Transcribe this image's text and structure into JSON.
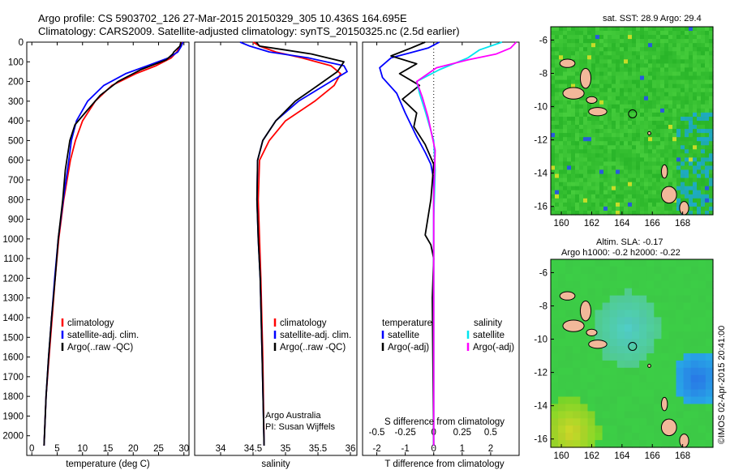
{
  "header": {
    "line1": "Argo profile: CS 5903702_126 27-Mar-2015 20150329_305 10.436S 164.695E",
    "line2": "Climatology: CARS2009. Satellite-adjusted climatology: synTS_20150325.nc (2.5d earlier)"
  },
  "colors": {
    "climatology": "#ff0000",
    "satellite": "#0000ff",
    "argo": "#000000",
    "sal_satellite": "#00e5ee",
    "sal_argo": "#ff00ff",
    "land": "#f2b89a"
  },
  "chart_data": [
    {
      "type": "line",
      "panel": "temperature",
      "xlabel": "temperature (deg C)",
      "ylabel": "",
      "xlim": [
        -1,
        31
      ],
      "ylim": [
        2100,
        0
      ],
      "xticks": [
        0,
        5,
        10,
        15,
        20,
        25,
        30
      ],
      "yticks": [
        0,
        100,
        200,
        300,
        400,
        500,
        600,
        700,
        800,
        900,
        1000,
        1100,
        1200,
        1300,
        1400,
        1500,
        1600,
        1700,
        1800,
        1900,
        2000
      ],
      "legend": [
        "climatology",
        "satellite-adj. clim.",
        "Argo(..raw -QC)"
      ],
      "series": [
        {
          "name": "climatology",
          "color": "#ff0000",
          "x": [
            29.6,
            29.3,
            28.6,
            27.5,
            24.5,
            20.5,
            15.8,
            12.5,
            10.0,
            8.6,
            7.6,
            6.3,
            5.3,
            4.6,
            4.0,
            3.4,
            2.8,
            2.4
          ],
          "y": [
            0,
            20,
            50,
            80,
            120,
            160,
            220,
            300,
            400,
            500,
            600,
            800,
            1000,
            1200,
            1400,
            1600,
            1800,
            2050
          ]
        },
        {
          "name": "satellite-adj. clim.",
          "color": "#0000ff",
          "x": [
            29.8,
            29.5,
            28.8,
            27.0,
            22.8,
            18.5,
            14.2,
            11.0,
            8.8,
            7.8,
            7.3,
            6.2,
            5.2,
            4.5,
            3.9,
            3.3,
            2.8,
            2.4
          ],
          "y": [
            0,
            20,
            50,
            80,
            120,
            160,
            220,
            300,
            400,
            500,
            600,
            800,
            1000,
            1200,
            1400,
            1600,
            1800,
            2050
          ]
        },
        {
          "name": "Argo(..raw -QC)",
          "color": "#000000",
          "x": [
            29.4,
            29.2,
            28.0,
            27.8,
            26.5,
            21.5,
            17.0,
            13.5,
            10.8,
            8.5,
            7.5,
            6.6,
            6.1,
            5.2,
            4.6,
            3.9,
            3.3,
            2.8,
            2.4
          ],
          "y": [
            0,
            20,
            50,
            60,
            90,
            140,
            200,
            270,
            350,
            420,
            500,
            650,
            800,
            1000,
            1200,
            1400,
            1600,
            1800,
            2050
          ]
        }
      ]
    },
    {
      "type": "line",
      "panel": "salinity",
      "xlabel": "salinity",
      "xlim": [
        33.6,
        36.1
      ],
      "ylim": [
        2100,
        0
      ],
      "xticks": [
        34,
        34.5,
        35,
        35.5,
        36
      ],
      "legend": [
        "climatology",
        "satellite-adj. clim.",
        "Argo(..raw -QC)"
      ],
      "annotation": [
        "Argo Australia",
        "PI: Susan Wijffels"
      ],
      "series": [
        {
          "name": "climatology",
          "color": "#ff0000",
          "x": [
            34.5,
            34.6,
            34.85,
            35.25,
            35.7,
            35.85,
            35.75,
            35.45,
            35.0,
            34.75,
            34.6,
            34.58,
            34.6,
            34.62,
            34.65,
            34.67
          ],
          "y": [
            0,
            20,
            50,
            80,
            120,
            160,
            220,
            300,
            400,
            500,
            600,
            800,
            1000,
            1200,
            1600,
            2050
          ]
        },
        {
          "name": "satellite-adj. clim.",
          "color": "#0000ff",
          "x": [
            34.3,
            34.45,
            34.75,
            35.35,
            35.9,
            35.95,
            35.6,
            35.2,
            34.85,
            34.65,
            34.57,
            34.56,
            34.58,
            34.61,
            34.64,
            34.67
          ],
          "y": [
            0,
            20,
            50,
            80,
            120,
            150,
            220,
            300,
            400,
            500,
            600,
            800,
            1000,
            1200,
            1600,
            2050
          ]
        },
        {
          "name": "Argo(..raw -QC)",
          "color": "#000000",
          "x": [
            34.55,
            34.6,
            35.0,
            35.4,
            35.9,
            35.8,
            35.5,
            35.15,
            34.85,
            34.65,
            34.57,
            34.56,
            34.58,
            34.61,
            34.64,
            34.67
          ],
          "y": [
            0,
            20,
            40,
            60,
            100,
            150,
            220,
            300,
            400,
            500,
            600,
            800,
            1000,
            1200,
            1600,
            2050
          ]
        }
      ]
    },
    {
      "type": "line",
      "panel": "difference",
      "xlabel": "T difference from climatology",
      "xlabel_top": "S difference from climatology",
      "xlim": [
        -2.5,
        3
      ],
      "ylim": [
        2100,
        0
      ],
      "xticks": [
        -2,
        -1,
        0,
        1,
        2
      ],
      "xticks_s": [
        -0.5,
        -0.25,
        0,
        0.25,
        0.5
      ],
      "legend_groups": [
        {
          "title": "temperature",
          "items": [
            "satellite",
            "Argo(-adj)"
          ]
        },
        {
          "title": "salinity",
          "items": [
            "satellite",
            "Argo(-adj)"
          ]
        }
      ],
      "series": [
        {
          "name": "temperature satellite",
          "color": "#0000ff",
          "x": [
            0.2,
            -0.2,
            -1.5,
            -1.9,
            -1.8,
            -1.3,
            -1.0,
            -0.6,
            -0.3,
            -0.1,
            0.0,
            0.0,
            0.0,
            0.0
          ],
          "y": [
            0,
            30,
            80,
            130,
            180,
            260,
            360,
            480,
            560,
            620,
            700,
            1000,
            1500,
            2050
          ]
        },
        {
          "name": "temperature Argo(-adj)",
          "color": "#000000",
          "x": [
            -0.3,
            -0.8,
            -1.5,
            -0.6,
            -1.2,
            -0.5,
            -1.1,
            -0.6,
            -0.7,
            -0.3,
            0.0,
            -0.1,
            -0.3,
            -0.1,
            0.0,
            -0.05,
            0.0
          ],
          "y": [
            0,
            30,
            70,
            110,
            160,
            220,
            290,
            360,
            430,
            520,
            620,
            800,
            980,
            1030,
            1100,
            1300,
            2050
          ]
        },
        {
          "name": "salinity satellite",
          "color": "#00e5ee",
          "x": [
            2.4,
            1.6,
            1.2,
            0.2,
            -0.6,
            -0.5,
            -0.3,
            0.0,
            0.05,
            0.0,
            0.0
          ],
          "y": [
            0,
            40,
            80,
            140,
            200,
            260,
            350,
            500,
            650,
            900,
            2050
          ]
        },
        {
          "name": "salinity Argo(-adj)",
          "color": "#ff00ff",
          "x": [
            2.9,
            2.7,
            2.2,
            1.2,
            0.1,
            -0.6,
            -0.4,
            -0.2,
            0.05,
            0.0,
            0.0
          ],
          "y": [
            0,
            30,
            60,
            90,
            130,
            200,
            280,
            380,
            550,
            800,
            2050
          ]
        }
      ]
    }
  ],
  "maps": [
    {
      "title": "sat. SST: 28.9 Argo: 29.4",
      "xticks": [
        "160",
        "162",
        "164",
        "166",
        "168"
      ],
      "yticks": [
        "-6",
        "-8",
        "-10",
        "-12",
        "-14",
        "-16"
      ],
      "xlim": [
        159.3,
        170.0
      ],
      "ylim": [
        -16.5,
        -5.2
      ],
      "argo_position": {
        "lon": 164.695,
        "lat": -10.436
      }
    },
    {
      "title": "Altim. SLA: -0.17",
      "subtitle": "Argo h1000: -0.2 h2000: -0.22",
      "xticks": [
        "160",
        "162",
        "164",
        "166",
        "168"
      ],
      "yticks": [
        "-6",
        "-8",
        "-10",
        "-12",
        "-14",
        "-16"
      ],
      "xlim": [
        159.3,
        170.0
      ],
      "ylim": [
        -16.5,
        -5.2
      ],
      "argo_position": {
        "lon": 164.695,
        "lat": -10.436
      }
    }
  ],
  "credit": "©IMOS 02-Apr-2015 20:41:00"
}
